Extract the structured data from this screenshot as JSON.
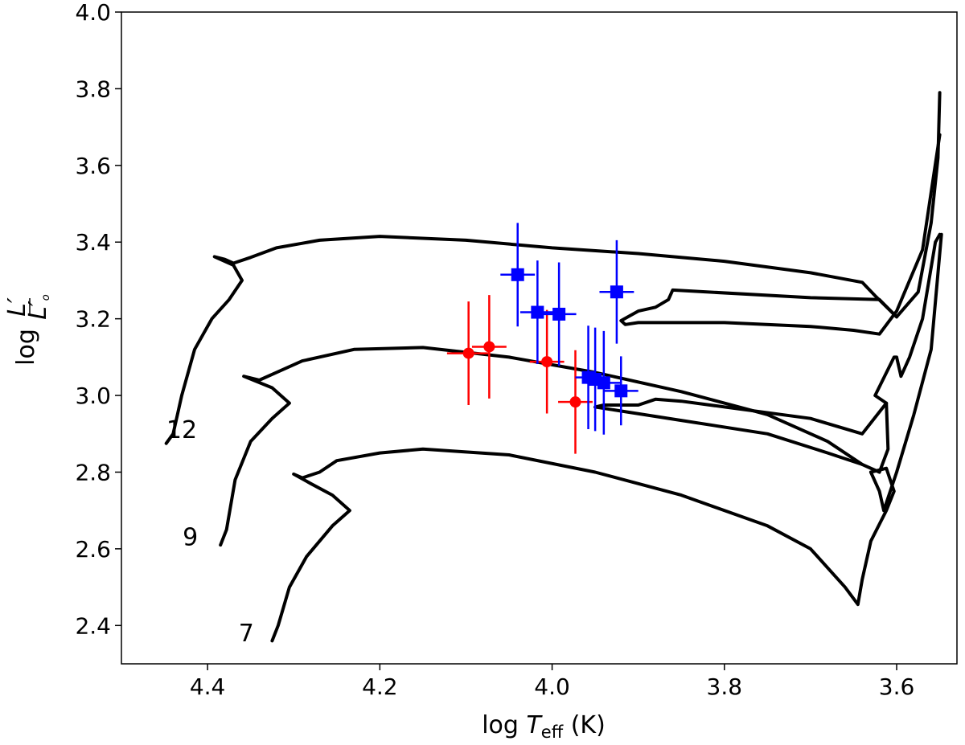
{
  "chart_data": {
    "type": "scatter",
    "title": "",
    "xlabel": "log T_eff (K)",
    "ylabel": "log L'/L'_o",
    "xlim": [
      4.5,
      3.53
    ],
    "ylim": [
      2.3,
      4.0
    ],
    "x_inverted": true,
    "xticks": [
      4.4,
      4.2,
      4.0,
      3.8,
      3.6
    ],
    "xtick_labels": [
      "4.4",
      "4.2",
      "4.0",
      "3.8",
      "3.6"
    ],
    "yticks": [
      2.4,
      2.6,
      2.8,
      3.0,
      3.2,
      3.4,
      3.6,
      3.8,
      4.0
    ],
    "ytick_labels": [
      "2.4",
      "2.6",
      "2.8",
      "3.0",
      "3.2",
      "3.4",
      "3.6",
      "3.8",
      "4.0"
    ],
    "tracks": [
      {
        "name": "12",
        "label": "12",
        "label_at": [
          4.43,
          2.91
        ],
        "color": "#000000",
        "points": [
          [
            4.448,
            2.875
          ],
          [
            4.44,
            2.9
          ],
          [
            4.43,
            3.0
          ],
          [
            4.415,
            3.12
          ],
          [
            4.395,
            3.2
          ],
          [
            4.375,
            3.25
          ],
          [
            4.36,
            3.3
          ],
          [
            4.37,
            3.34
          ],
          [
            4.392,
            3.362
          ],
          [
            4.38,
            3.355
          ],
          [
            4.37,
            3.345
          ],
          [
            4.35,
            3.36
          ],
          [
            4.32,
            3.385
          ],
          [
            4.27,
            3.405
          ],
          [
            4.2,
            3.415
          ],
          [
            4.1,
            3.405
          ],
          [
            4.0,
            3.385
          ],
          [
            3.9,
            3.37
          ],
          [
            3.8,
            3.35
          ],
          [
            3.7,
            3.32
          ],
          [
            3.64,
            3.295
          ],
          [
            3.625,
            3.26
          ],
          [
            3.6,
            3.205
          ],
          [
            3.575,
            3.27
          ],
          [
            3.56,
            3.45
          ],
          [
            3.552,
            3.62
          ],
          [
            3.55,
            3.79
          ]
        ],
        "branches": [
          [
            [
              3.6,
              3.205
            ],
            [
              3.62,
              3.25
            ],
            [
              3.7,
              3.255
            ],
            [
              3.86,
              3.275
            ],
            [
              3.865,
              3.25
            ],
            [
              3.88,
              3.23
            ],
            [
              3.9,
              3.22
            ],
            [
              3.92,
              3.195
            ],
            [
              3.915,
              3.185
            ],
            [
              3.9,
              3.19
            ],
            [
              3.8,
              3.19
            ],
            [
              3.7,
              3.18
            ],
            [
              3.65,
              3.17
            ],
            [
              3.62,
              3.16
            ],
            [
              3.6,
              3.22
            ],
            [
              3.57,
              3.38
            ],
            [
              3.55,
              3.68
            ]
          ]
        ]
      },
      {
        "name": "9",
        "label": "9",
        "label_at": [
          4.42,
          2.63
        ],
        "color": "#000000",
        "points": [
          [
            4.385,
            2.61
          ],
          [
            4.378,
            2.65
          ],
          [
            4.368,
            2.78
          ],
          [
            4.35,
            2.88
          ],
          [
            4.325,
            2.94
          ],
          [
            4.305,
            2.98
          ],
          [
            4.325,
            3.02
          ],
          [
            4.358,
            3.05
          ],
          [
            4.34,
            3.04
          ],
          [
            4.32,
            3.06
          ],
          [
            4.29,
            3.09
          ],
          [
            4.23,
            3.12
          ],
          [
            4.15,
            3.125
          ],
          [
            4.05,
            3.1
          ],
          [
            3.95,
            3.06
          ],
          [
            3.85,
            3.01
          ],
          [
            3.75,
            2.95
          ],
          [
            3.68,
            2.88
          ],
          [
            3.64,
            2.82
          ],
          [
            3.62,
            2.8
          ],
          [
            3.61,
            2.86
          ],
          [
            3.612,
            2.98
          ],
          [
            3.625,
            3.0
          ],
          [
            3.603,
            3.1
          ],
          [
            3.6,
            3.1
          ],
          [
            3.595,
            3.05
          ],
          [
            3.585,
            3.1
          ],
          [
            3.57,
            3.2
          ],
          [
            3.555,
            3.4
          ],
          [
            3.55,
            3.42
          ]
        ],
        "branches": [
          [
            [
              3.64,
              2.82
            ],
            [
              3.68,
              2.85
            ],
            [
              3.75,
              2.9
            ],
            [
              3.85,
              2.935
            ],
            [
              3.95,
              2.97
            ],
            [
              3.94,
              2.975
            ],
            [
              3.9,
              2.975
            ],
            [
              3.88,
              2.99
            ],
            [
              3.85,
              2.985
            ],
            [
              3.7,
              2.94
            ],
            [
              3.64,
              2.9
            ],
            [
              3.612,
              2.98
            ]
          ]
        ]
      },
      {
        "name": "7",
        "label": "7",
        "label_at": [
          4.355,
          2.38
        ],
        "color": "#000000",
        "points": [
          [
            4.325,
            2.36
          ],
          [
            4.318,
            2.4
          ],
          [
            4.305,
            2.5
          ],
          [
            4.285,
            2.58
          ],
          [
            4.255,
            2.66
          ],
          [
            4.235,
            2.7
          ],
          [
            4.255,
            2.74
          ],
          [
            4.28,
            2.77
          ],
          [
            4.3,
            2.795
          ],
          [
            4.29,
            2.785
          ],
          [
            4.27,
            2.8
          ],
          [
            4.25,
            2.83
          ],
          [
            4.2,
            2.85
          ],
          [
            4.15,
            2.86
          ],
          [
            4.05,
            2.845
          ],
          [
            3.95,
            2.8
          ],
          [
            3.85,
            2.74
          ],
          [
            3.75,
            2.66
          ],
          [
            3.7,
            2.6
          ],
          [
            3.66,
            2.5
          ],
          [
            3.645,
            2.455
          ],
          [
            3.64,
            2.52
          ],
          [
            3.63,
            2.62
          ],
          [
            3.612,
            2.7
          ],
          [
            3.603,
            2.75
          ],
          [
            3.612,
            2.81
          ],
          [
            3.63,
            2.8
          ],
          [
            3.62,
            2.75
          ],
          [
            3.615,
            2.7
          ],
          [
            3.6,
            2.8
          ],
          [
            3.58,
            2.95
          ],
          [
            3.56,
            3.12
          ],
          [
            3.548,
            3.42
          ]
        ],
        "branches": []
      }
    ],
    "series": [
      {
        "name": "red-circles",
        "marker": "circle",
        "color": "#ff0000",
        "points": [
          {
            "x": 4.097,
            "y": 3.11,
            "xerr": 0.025,
            "yerr": 0.135
          },
          {
            "x": 4.073,
            "y": 3.127,
            "xerr": 0.02,
            "yerr": 0.135
          },
          {
            "x": 4.006,
            "y": 3.088,
            "xerr": 0.02,
            "yerr": 0.135
          },
          {
            "x": 3.973,
            "y": 2.983,
            "xerr": 0.02,
            "yerr": 0.135
          }
        ]
      },
      {
        "name": "blue-squares",
        "marker": "square",
        "color": "#0000ff",
        "points": [
          {
            "x": 4.04,
            "y": 3.315,
            "xerr": 0.02,
            "yerr": 0.135
          },
          {
            "x": 4.017,
            "y": 3.217,
            "xerr": 0.02,
            "yerr": 0.135
          },
          {
            "x": 3.992,
            "y": 3.212,
            "xerr": 0.02,
            "yerr": 0.135
          },
          {
            "x": 3.925,
            "y": 3.27,
            "xerr": 0.02,
            "yerr": 0.135
          },
          {
            "x": 3.958,
            "y": 3.047,
            "xerr": 0.015,
            "yerr": 0.135
          },
          {
            "x": 3.95,
            "y": 3.042,
            "xerr": 0.015,
            "yerr": 0.135
          },
          {
            "x": 3.94,
            "y": 3.033,
            "xerr": 0.02,
            "yerr": 0.135
          },
          {
            "x": 3.92,
            "y": 3.012,
            "xerr": 0.02,
            "yerr": 0.09
          }
        ]
      }
    ]
  }
}
